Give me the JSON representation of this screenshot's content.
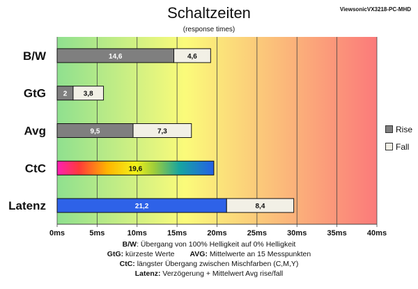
{
  "header": {
    "title": "Schaltzeiten",
    "subtitle": "(response times)",
    "monitor": "ViewsonicVX3218-PC-MHD"
  },
  "legend": {
    "rise": "Rise",
    "fall": "Fall"
  },
  "notes": {
    "bw_label": "B/W",
    "bw_text": ":  Übergang von 100% Helligkeit auf 0% Helligkeit",
    "gtg_label": "GtG:",
    "gtg_text": " kürzeste  Werte",
    "avg_label": "AVG:",
    "avg_text": " Mittelwerte  an 15 Messpunkten",
    "ctc_label": "CtC:",
    "ctc_text": " längster Übergang  zwischen Mischfarben  (C,M,Y)",
    "lat_label": "Latenz:",
    "lat_text": " Verzögerung  + Mittelwert  Avg rise/fall"
  },
  "colors": {
    "rise": "#7f7f7f",
    "fall": "#f2f0e6",
    "latency": "#2e62e8",
    "bg_green": "#8fe08f",
    "bg_yellow": "#fbfb7a",
    "bg_red": "#fb7a7a"
  },
  "chart_data": {
    "type": "bar",
    "orientation": "horizontal",
    "stacked": true,
    "unit": "ms",
    "categories": [
      "B/W",
      "GtG",
      "Avg",
      "CtC",
      "Latenz"
    ],
    "series": [
      {
        "name": "Rise",
        "values": [
          14.6,
          2,
          9.5,
          null,
          null
        ]
      },
      {
        "name": "Fall",
        "values": [
          4.6,
          3.8,
          7.3,
          null,
          8.4
        ]
      }
    ],
    "ctc": 19.6,
    "latency": 21.2,
    "xlim": [
      0,
      40
    ],
    "xticks": [
      0,
      5,
      10,
      15,
      20,
      25,
      30,
      35,
      40
    ],
    "xtick_labels": [
      "0ms",
      "5ms",
      "10ms",
      "15ms",
      "20ms",
      "25ms",
      "30ms",
      "35ms",
      "40ms"
    ],
    "grid": true,
    "legend_position": "right"
  }
}
